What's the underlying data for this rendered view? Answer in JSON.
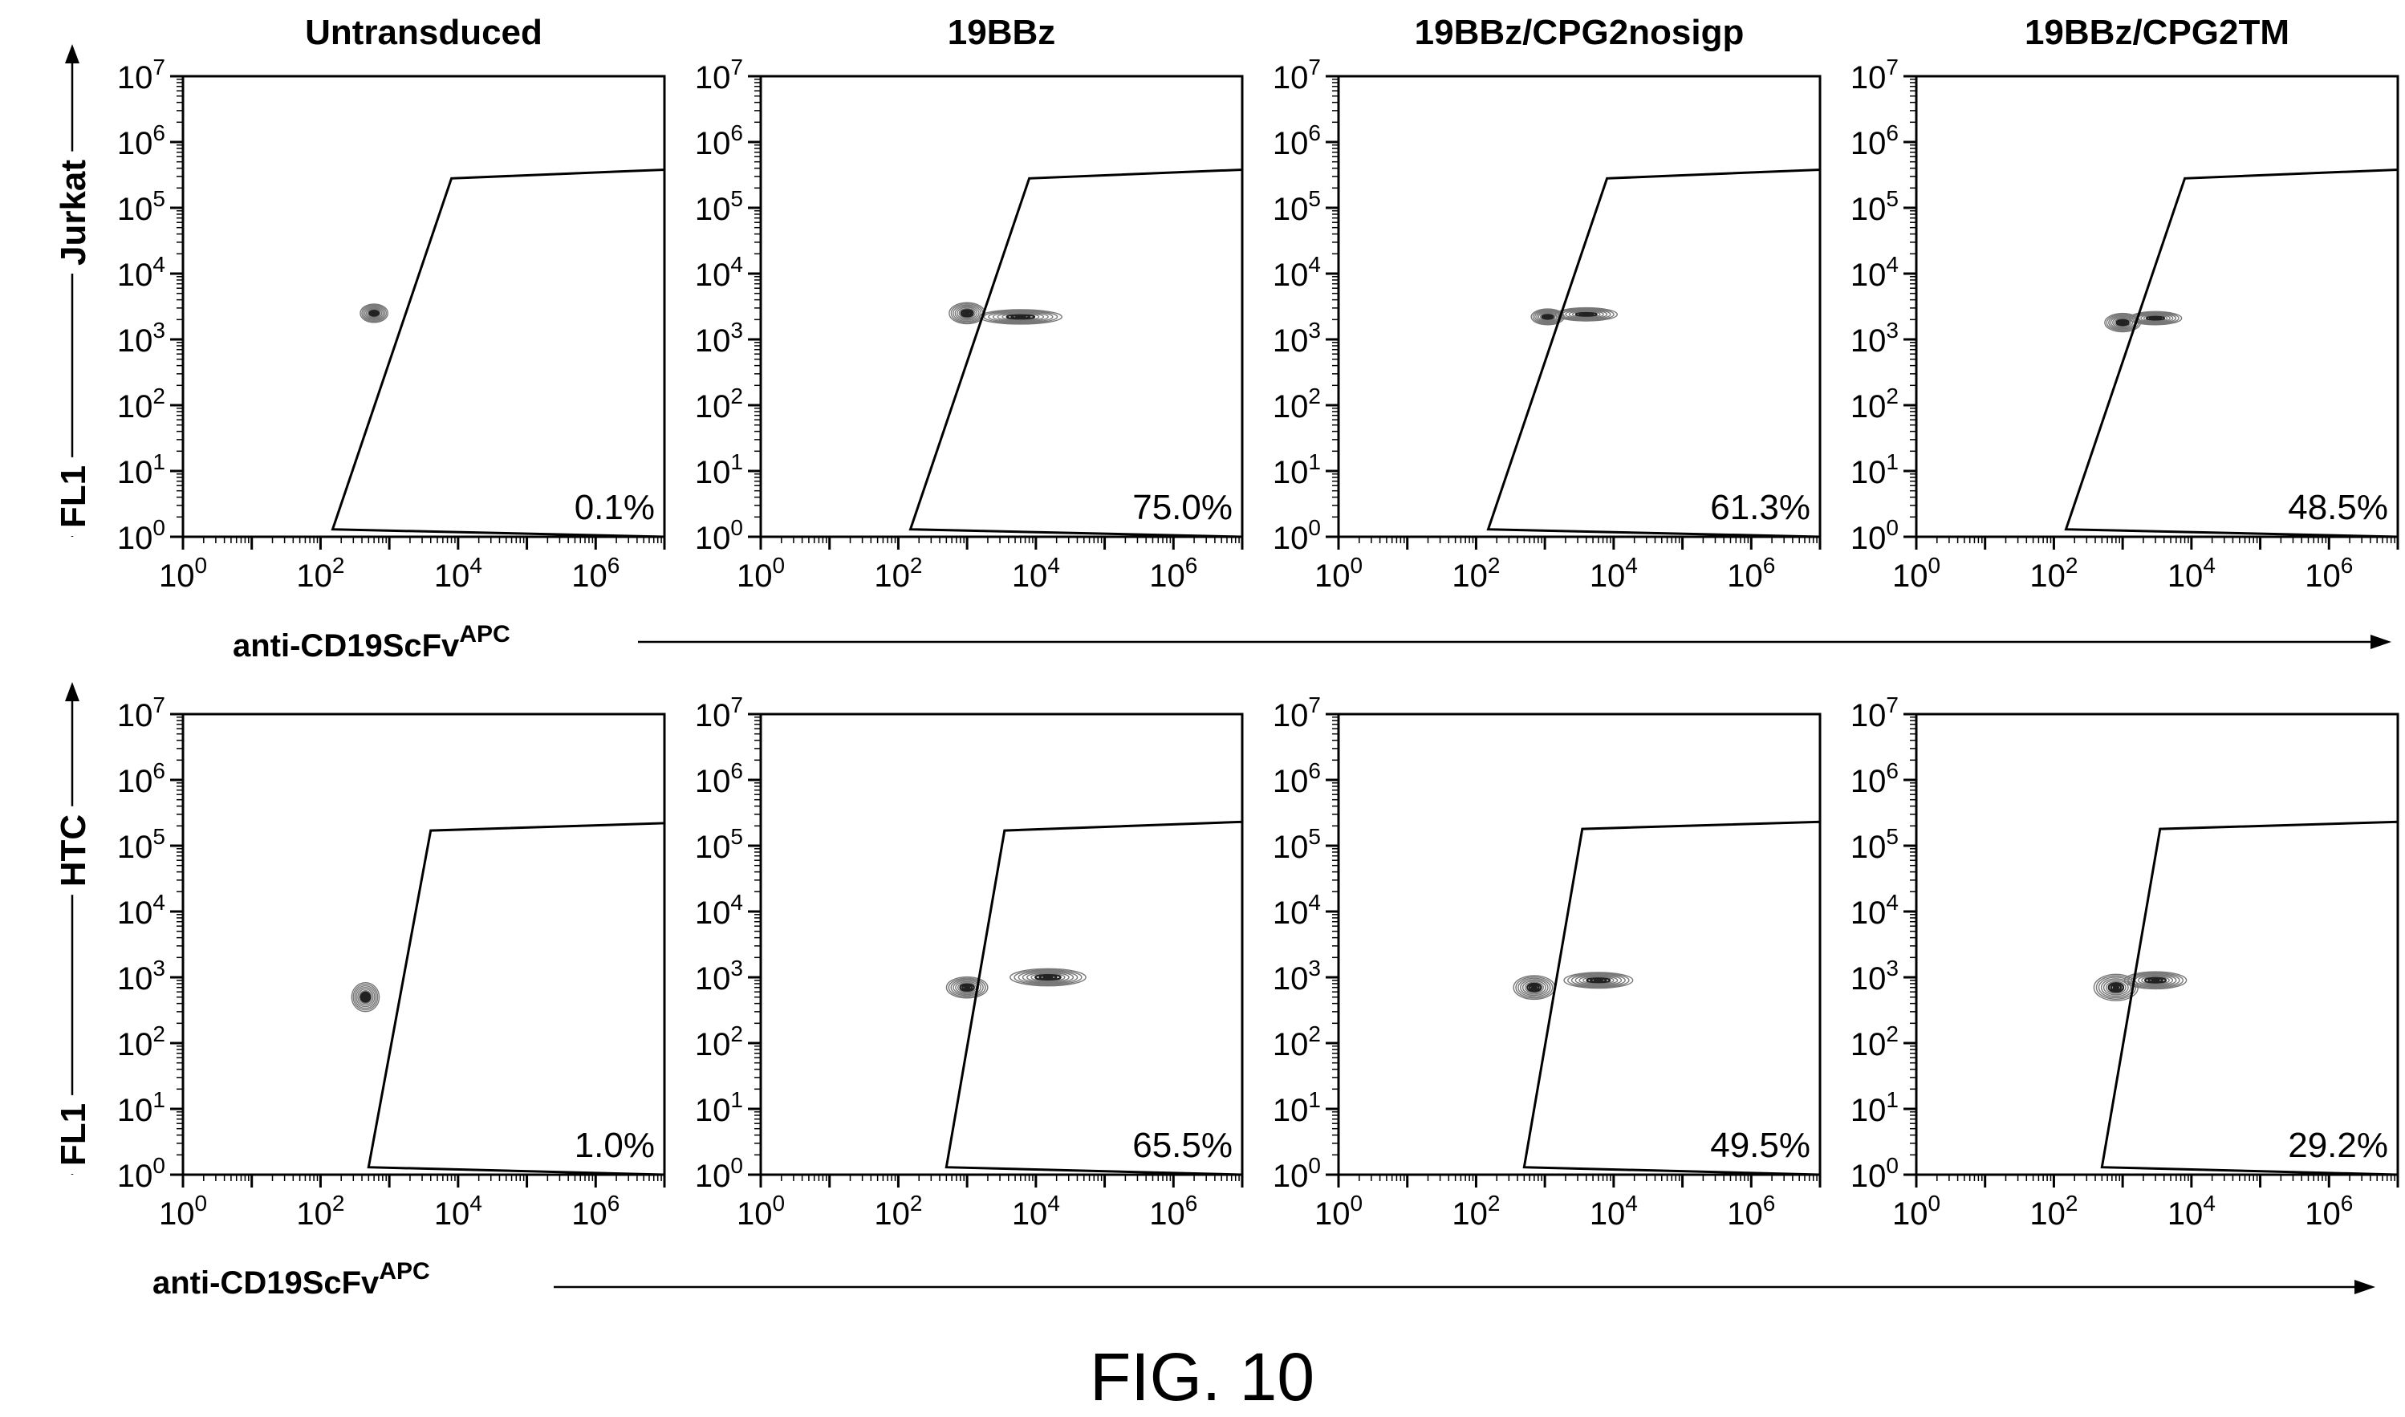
{
  "figure_label": "FIG. 10",
  "column_titles": [
    "Untransduced",
    "19BBz",
    "19BBz/CPG2nosigp",
    "19BBz/CPG2TM"
  ],
  "row_labels": [
    "Jurkat",
    "HTC"
  ],
  "y_axis_title": "FL1",
  "x_axis_title": {
    "base": "anti-CD19ScFv",
    "superscript": "APC"
  },
  "tick_labels": {
    "x": [
      {
        "base": "10",
        "exp": "0"
      },
      {
        "base": "10",
        "exp": "2"
      },
      {
        "base": "10",
        "exp": "4"
      },
      {
        "base": "10",
        "exp": "6"
      }
    ],
    "y": [
      {
        "base": "10",
        "exp": "0"
      },
      {
        "base": "10",
        "exp": "1"
      },
      {
        "base": "10",
        "exp": "2"
      },
      {
        "base": "10",
        "exp": "3"
      },
      {
        "base": "10",
        "exp": "4"
      },
      {
        "base": "10",
        "exp": "5"
      },
      {
        "base": "10",
        "exp": "6"
      },
      {
        "base": "10",
        "exp": "7"
      }
    ]
  },
  "chart_data": [
    {
      "type": "contour",
      "row": "Jurkat",
      "title": "Untransduced",
      "xlabel": "anti-CD19ScFvAPC",
      "ylabel": "FL1",
      "xscale": "log",
      "yscale": "log",
      "xlim": [
        1,
        10000000
      ],
      "ylim": [
        1,
        10000000
      ],
      "gate_percent": "0.1%",
      "gate": [
        [
          150,
          1.3
        ],
        [
          8000,
          280000
        ],
        [
          10000000,
          380000
        ],
        [
          10000000,
          1
        ]
      ],
      "populations": [
        {
          "center": [
            600,
            2500
          ],
          "spread_x": 0.2,
          "spread_y": 0.14,
          "skew": 0.0
        }
      ]
    },
    {
      "type": "contour",
      "row": "Jurkat",
      "title": "19BBz",
      "xlabel": "anti-CD19ScFvAPC",
      "ylabel": "FL1",
      "xscale": "log",
      "yscale": "log",
      "xlim": [
        1,
        10000000
      ],
      "ylim": [
        1,
        10000000
      ],
      "gate_percent": "75.0%",
      "gate": [
        [
          150,
          1.3
        ],
        [
          8000,
          280000
        ],
        [
          10000000,
          380000
        ],
        [
          10000000,
          1
        ]
      ],
      "populations": [
        {
          "center": [
            1000,
            2500
          ],
          "spread_x": 0.26,
          "spread_y": 0.16,
          "skew": 0.0
        },
        {
          "center": [
            6000,
            2200
          ],
          "spread_x": 0.6,
          "spread_y": 0.11,
          "skew": 0.0
        }
      ]
    },
    {
      "type": "contour",
      "row": "Jurkat",
      "title": "19BBz/CPG2nosigp",
      "xlabel": "anti-CD19ScFvAPC",
      "ylabel": "FL1",
      "xscale": "log",
      "yscale": "log",
      "xlim": [
        1,
        10000000
      ],
      "ylim": [
        1,
        10000000
      ],
      "gate_percent": "61.3%",
      "gate": [
        [
          150,
          1.3
        ],
        [
          8000,
          280000
        ],
        [
          10000000,
          380000
        ],
        [
          10000000,
          1
        ]
      ],
      "populations": [
        {
          "center": [
            1100,
            2200
          ],
          "spread_x": 0.24,
          "spread_y": 0.12,
          "skew": 0.0
        },
        {
          "center": [
            4000,
            2400
          ],
          "spread_x": 0.45,
          "spread_y": 0.1,
          "skew": 0.0
        }
      ]
    },
    {
      "type": "contour",
      "row": "Jurkat",
      "title": "19BBz/CPG2TM",
      "xlabel": "anti-CD19ScFvAPC",
      "ylabel": "FL1",
      "xscale": "log",
      "yscale": "log",
      "xlim": [
        1,
        10000000
      ],
      "ylim": [
        1,
        10000000
      ],
      "gate_percent": "48.5%",
      "gate": [
        [
          150,
          1.3
        ],
        [
          8000,
          280000
        ],
        [
          10000000,
          380000
        ],
        [
          10000000,
          1
        ]
      ],
      "populations": [
        {
          "center": [
            1000,
            1800
          ],
          "spread_x": 0.26,
          "spread_y": 0.14,
          "skew": 0.0
        },
        {
          "center": [
            3000,
            2100
          ],
          "spread_x": 0.38,
          "spread_y": 0.1,
          "skew": 0.0
        }
      ]
    },
    {
      "type": "contour",
      "row": "HTC",
      "title": "Untransduced",
      "xlabel": "anti-CD19ScFvAPC",
      "ylabel": "FL1",
      "xscale": "log",
      "yscale": "log",
      "xlim": [
        1,
        10000000
      ],
      "ylim": [
        1,
        10000000
      ],
      "gate_percent": "1.0%",
      "gate": [
        [
          500,
          1.3
        ],
        [
          4000,
          170000
        ],
        [
          10000000,
          220000
        ],
        [
          10000000,
          1
        ]
      ],
      "populations": [
        {
          "center": [
            450,
            500
          ],
          "spread_x": 0.2,
          "spread_y": 0.22,
          "skew": 0.0
        }
      ]
    },
    {
      "type": "contour",
      "row": "HTC",
      "title": "19BBz",
      "xlabel": "anti-CD19ScFvAPC",
      "ylabel": "FL1",
      "xscale": "log",
      "yscale": "log",
      "xlim": [
        1,
        10000000
      ],
      "ylim": [
        1,
        10000000
      ],
      "gate_percent": "65.5%",
      "gate": [
        [
          500,
          1.3
        ],
        [
          3500,
          170000
        ],
        [
          10000000,
          230000
        ],
        [
          10000000,
          1
        ]
      ],
      "populations": [
        {
          "center": [
            1000,
            700
          ],
          "spread_x": 0.3,
          "spread_y": 0.16,
          "skew": 0.0
        },
        {
          "center": [
            15000,
            1000
          ],
          "spread_x": 0.55,
          "spread_y": 0.13,
          "skew": 0.0
        }
      ]
    },
    {
      "type": "contour",
      "row": "HTC",
      "title": "19BBz/CPG2nosigp",
      "xlabel": "anti-CD19ScFvAPC",
      "ylabel": "FL1",
      "xscale": "log",
      "yscale": "log",
      "xlim": [
        1,
        10000000
      ],
      "ylim": [
        1,
        10000000
      ],
      "gate_percent": "49.5%",
      "gate": [
        [
          500,
          1.3
        ],
        [
          3500,
          180000
        ],
        [
          10000000,
          230000
        ],
        [
          10000000,
          1
        ]
      ],
      "populations": [
        {
          "center": [
            700,
            700
          ],
          "spread_x": 0.3,
          "spread_y": 0.18,
          "skew": 0.0
        },
        {
          "center": [
            6000,
            900
          ],
          "spread_x": 0.5,
          "spread_y": 0.12,
          "skew": 0.0
        }
      ]
    },
    {
      "type": "contour",
      "row": "HTC",
      "title": "19BBz/CPG2TM",
      "xlabel": "anti-CD19ScFvAPC",
      "ylabel": "FL1",
      "xscale": "log",
      "yscale": "log",
      "xlim": [
        1,
        10000000
      ],
      "ylim": [
        1,
        10000000
      ],
      "gate_percent": "29.2%",
      "gate": [
        [
          500,
          1.3
        ],
        [
          3500,
          180000
        ],
        [
          10000000,
          230000
        ],
        [
          10000000,
          1
        ]
      ],
      "populations": [
        {
          "center": [
            800,
            700
          ],
          "spread_x": 0.32,
          "spread_y": 0.2,
          "skew": 0.0
        },
        {
          "center": [
            3000,
            900
          ],
          "spread_x": 0.45,
          "spread_y": 0.13,
          "skew": 0.0
        }
      ]
    }
  ]
}
